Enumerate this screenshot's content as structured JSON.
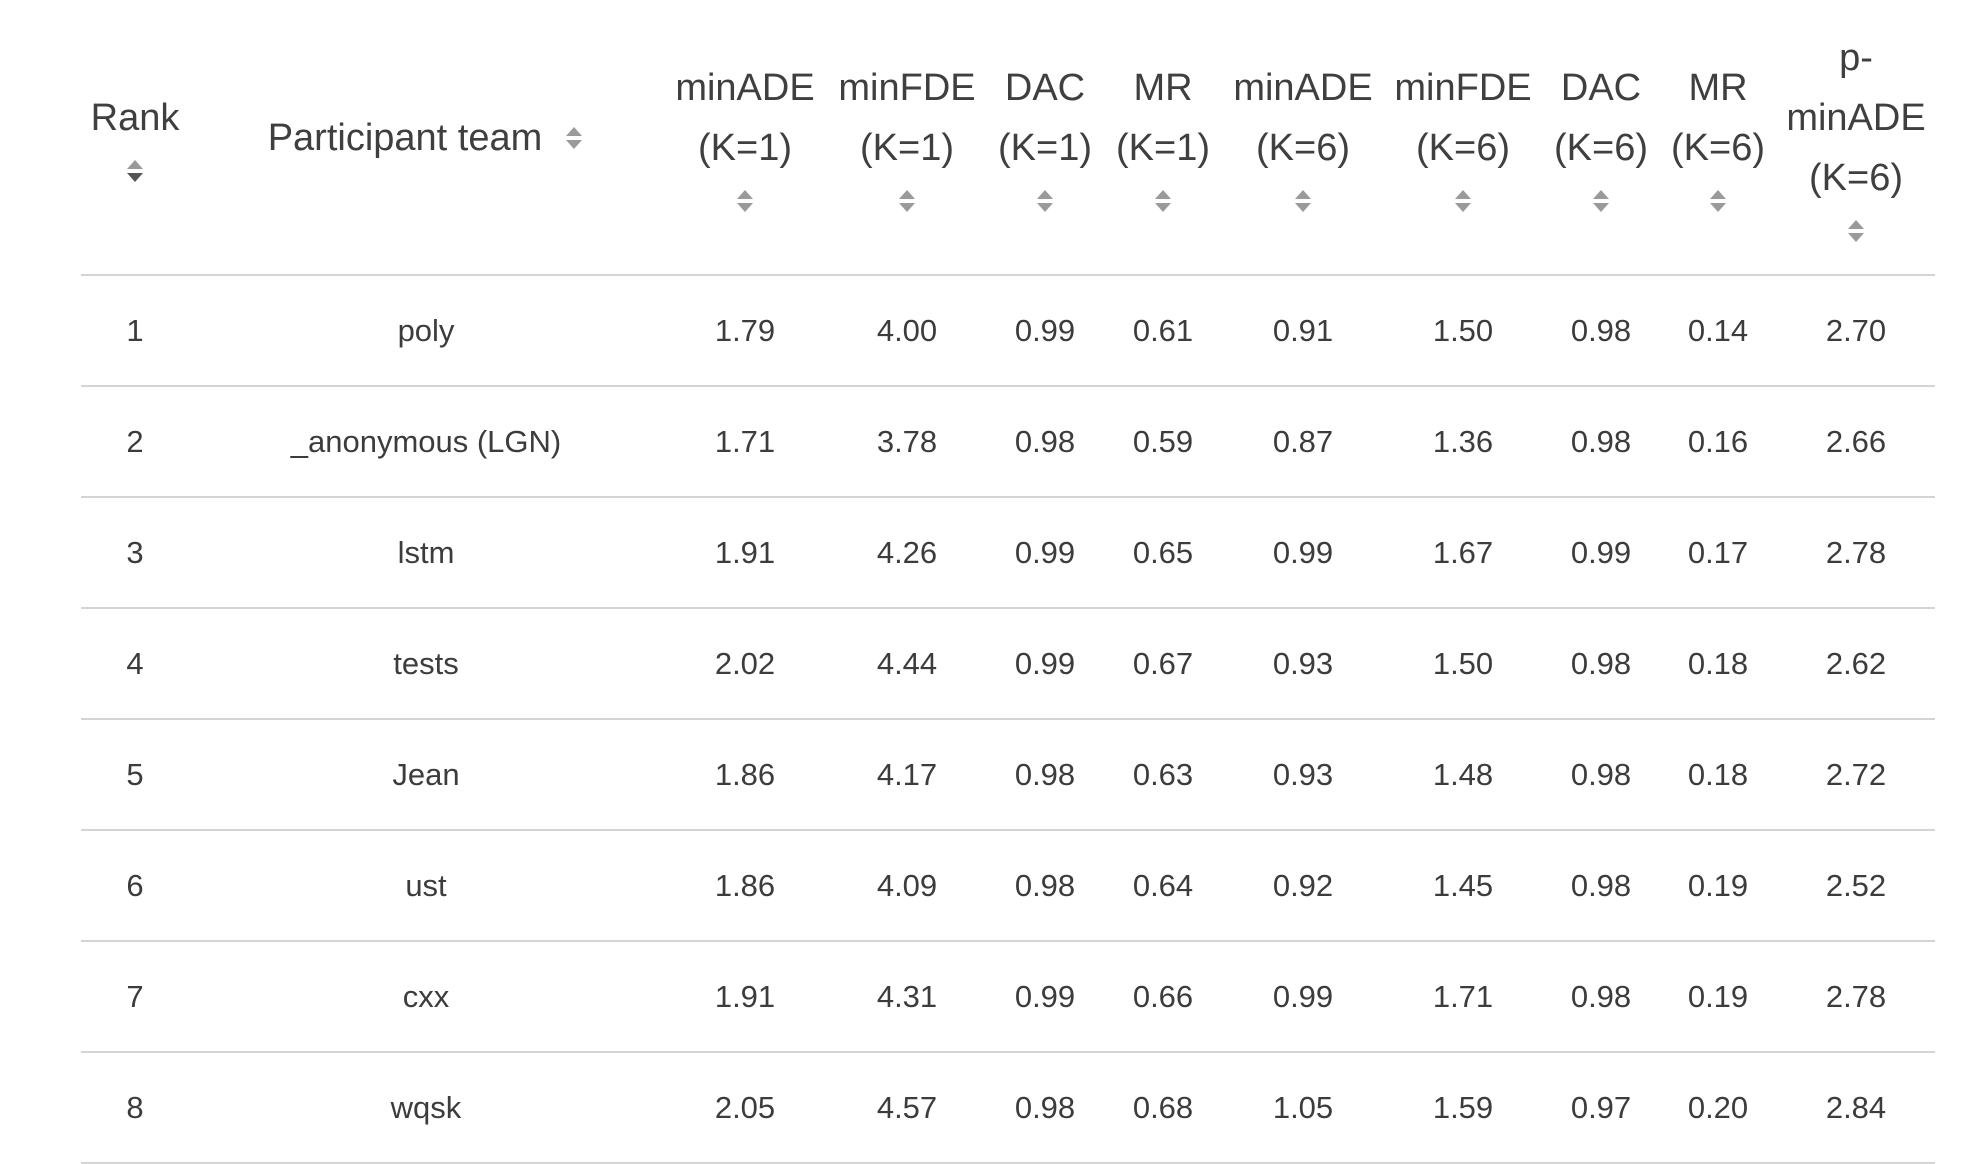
{
  "leaderboard": {
    "columns": [
      {
        "key": "rank",
        "label": "Rank",
        "sortable": true
      },
      {
        "key": "team",
        "label": "Participant team",
        "sortable": true
      },
      {
        "key": "minade_k1",
        "label": "minADE (K=1)",
        "sortable": true
      },
      {
        "key": "minfde_k1",
        "label": "minFDE (K=1)",
        "sortable": true
      },
      {
        "key": "dac_k1",
        "label": "DAC (K=1)",
        "sortable": true
      },
      {
        "key": "mr_k1",
        "label": "MR (K=1)",
        "sortable": true
      },
      {
        "key": "minade_k6",
        "label": "minADE (K=6)",
        "sortable": true
      },
      {
        "key": "minfde_k6",
        "label": "minFDE (K=6)",
        "sortable": true
      },
      {
        "key": "dac_k6",
        "label": "DAC (K=6)",
        "sortable": true
      },
      {
        "key": "mr_k6",
        "label": "MR (K=6)",
        "sortable": true
      },
      {
        "key": "pminade_k6",
        "label": "p-minADE (K=6)",
        "sortable": true
      }
    ],
    "rows": [
      {
        "rank": "1",
        "team": "poly",
        "minade_k1": "1.79",
        "minfde_k1": "4.00",
        "dac_k1": "0.99",
        "mr_k1": "0.61",
        "minade_k6": "0.91",
        "minfde_k6": "1.50",
        "dac_k6": "0.98",
        "mr_k6": "0.14",
        "pminade_k6": "2.70"
      },
      {
        "rank": "2",
        "team": "_anonymous (LGN)",
        "minade_k1": "1.71",
        "minfde_k1": "3.78",
        "dac_k1": "0.98",
        "mr_k1": "0.59",
        "minade_k6": "0.87",
        "minfde_k6": "1.36",
        "dac_k6": "0.98",
        "mr_k6": "0.16",
        "pminade_k6": "2.66"
      },
      {
        "rank": "3",
        "team": "lstm",
        "minade_k1": "1.91",
        "minfde_k1": "4.26",
        "dac_k1": "0.99",
        "mr_k1": "0.65",
        "minade_k6": "0.99",
        "minfde_k6": "1.67",
        "dac_k6": "0.99",
        "mr_k6": "0.17",
        "pminade_k6": "2.78"
      },
      {
        "rank": "4",
        "team": "tests",
        "minade_k1": "2.02",
        "minfde_k1": "4.44",
        "dac_k1": "0.99",
        "mr_k1": "0.67",
        "minade_k6": "0.93",
        "minfde_k6": "1.50",
        "dac_k6": "0.98",
        "mr_k6": "0.18",
        "pminade_k6": "2.62"
      },
      {
        "rank": "5",
        "team": "Jean",
        "minade_k1": "1.86",
        "minfde_k1": "4.17",
        "dac_k1": "0.98",
        "mr_k1": "0.63",
        "minade_k6": "0.93",
        "minfde_k6": "1.48",
        "dac_k6": "0.98",
        "mr_k6": "0.18",
        "pminade_k6": "2.72"
      },
      {
        "rank": "6",
        "team": "ust",
        "minade_k1": "1.86",
        "minfde_k1": "4.09",
        "dac_k1": "0.98",
        "mr_k1": "0.64",
        "minade_k6": "0.92",
        "minfde_k6": "1.45",
        "dac_k6": "0.98",
        "mr_k6": "0.19",
        "pminade_k6": "2.52"
      },
      {
        "rank": "7",
        "team": "cxx",
        "minade_k1": "1.91",
        "minfde_k1": "4.31",
        "dac_k1": "0.99",
        "mr_k1": "0.66",
        "minade_k6": "0.99",
        "minfde_k6": "1.71",
        "dac_k6": "0.98",
        "mr_k6": "0.19",
        "pminade_k6": "2.78"
      },
      {
        "rank": "8",
        "team": "wqsk",
        "minade_k1": "2.05",
        "minfde_k1": "4.57",
        "dac_k1": "0.98",
        "mr_k1": "0.68",
        "minade_k6": "1.05",
        "minfde_k6": "1.59",
        "dac_k6": "0.97",
        "mr_k6": "0.20",
        "pminade_k6": "2.84"
      }
    ]
  },
  "icons": {
    "sort": "sort-both-arrows-icon"
  },
  "colors": {
    "text": "#3c3c3c",
    "header_text": "#3f3f3f",
    "divider": "#d4d4d4",
    "sort_arrow": "#9a9a9a",
    "sort_arrow_active": "#555555"
  }
}
